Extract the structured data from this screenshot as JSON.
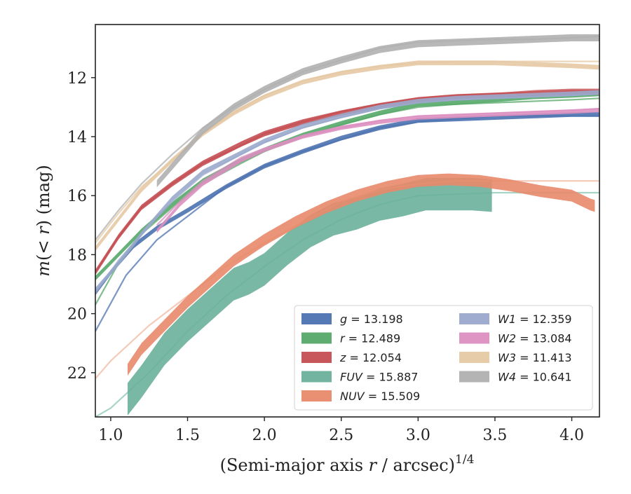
{
  "chart_data": {
    "type": "line",
    "xlabel": "(Semi-major axis r / arcsec)",
    "xlabel_italic": "r",
    "xlabel_power": "1/4",
    "ylabel": "m(< r) (mag)",
    "xlim": [
      0.9,
      4.18
    ],
    "ylim": [
      23.5,
      10.2
    ],
    "y_inverted": true,
    "grid": false,
    "legend_position": "lower-right",
    "xticks": [
      1.0,
      1.5,
      2.0,
      2.5,
      3.0,
      3.5,
      4.0
    ],
    "xtick_labels": [
      "1.0",
      "1.5",
      "2.0",
      "2.5",
      "3.0",
      "3.5",
      "4.0"
    ],
    "yticks": [
      12,
      14,
      16,
      18,
      20,
      22
    ],
    "ytick_labels": [
      "12",
      "14",
      "16",
      "18",
      "20",
      "22"
    ],
    "series": [
      {
        "name": "g",
        "label": "g = 13.198",
        "color": "#4c72b0",
        "model": [
          [
            0.9,
            20.6
          ],
          [
            1.1,
            18.7
          ],
          [
            1.3,
            17.5
          ],
          [
            1.5,
            16.7
          ],
          [
            1.75,
            15.7
          ],
          [
            2.0,
            15.0
          ],
          [
            2.25,
            14.5
          ],
          [
            2.5,
            14.1
          ],
          [
            2.75,
            13.7
          ],
          [
            3.0,
            13.5
          ],
          [
            3.25,
            13.4
          ],
          [
            3.5,
            13.3
          ],
          [
            3.75,
            13.3
          ],
          [
            4.0,
            13.3
          ],
          [
            4.18,
            13.3
          ]
        ],
        "observed": [
          [
            0.9,
            19.3
          ],
          [
            1.0,
            18.6
          ],
          [
            1.15,
            17.7
          ],
          [
            1.3,
            17.1
          ],
          [
            1.5,
            16.5
          ],
          [
            1.75,
            15.7
          ],
          [
            2.0,
            15.0
          ],
          [
            2.25,
            14.5
          ],
          [
            2.5,
            14.05
          ],
          [
            2.75,
            13.7
          ],
          [
            3.0,
            13.45
          ],
          [
            3.25,
            13.4
          ],
          [
            3.5,
            13.35
          ],
          [
            3.75,
            13.3
          ],
          [
            4.0,
            13.25
          ],
          [
            4.18,
            13.25
          ]
        ],
        "band": 0.08
      },
      {
        "name": "r",
        "label": "r = 12.489",
        "color": "#55a868",
        "model": [
          [
            0.9,
            19.7
          ],
          [
            1.05,
            18.3
          ],
          [
            1.2,
            17.3
          ],
          [
            1.4,
            16.4
          ],
          [
            1.6,
            15.6
          ],
          [
            1.85,
            14.9
          ],
          [
            2.0,
            14.5
          ],
          [
            2.25,
            14.0
          ],
          [
            2.5,
            13.6
          ],
          [
            2.75,
            13.25
          ],
          [
            3.0,
            13.0
          ],
          [
            3.25,
            12.9
          ],
          [
            3.5,
            12.85
          ],
          [
            3.75,
            12.8
          ],
          [
            4.0,
            12.75
          ],
          [
            4.18,
            12.7
          ]
        ],
        "observed": [
          [
            0.9,
            18.8
          ],
          [
            1.05,
            18.0
          ],
          [
            1.2,
            17.2
          ],
          [
            1.4,
            16.3
          ],
          [
            1.6,
            15.5
          ],
          [
            1.85,
            14.8
          ],
          [
            2.0,
            14.45
          ],
          [
            2.25,
            13.95
          ],
          [
            2.5,
            13.55
          ],
          [
            2.75,
            13.2
          ],
          [
            3.0,
            12.9
          ],
          [
            3.25,
            12.85
          ],
          [
            3.5,
            12.75
          ],
          [
            3.75,
            12.65
          ],
          [
            4.0,
            12.6
          ],
          [
            4.18,
            12.55
          ]
        ],
        "band": 0.08
      },
      {
        "name": "z",
        "label": "z = 12.054",
        "color": "#c44e52",
        "model": [
          [
            0.9,
            18.6
          ],
          [
            1.05,
            17.4
          ],
          [
            1.2,
            16.4
          ],
          [
            1.4,
            15.6
          ],
          [
            1.6,
            14.9
          ],
          [
            1.85,
            14.3
          ],
          [
            2.0,
            13.9
          ],
          [
            2.25,
            13.5
          ],
          [
            2.5,
            13.15
          ],
          [
            2.75,
            12.9
          ],
          [
            3.0,
            12.7
          ],
          [
            3.25,
            12.6
          ],
          [
            3.5,
            12.55
          ],
          [
            3.75,
            12.45
          ],
          [
            4.0,
            12.4
          ],
          [
            4.18,
            12.4
          ]
        ],
        "observed": [
          [
            0.9,
            18.6
          ],
          [
            1.05,
            17.4
          ],
          [
            1.2,
            16.4
          ],
          [
            1.4,
            15.6
          ],
          [
            1.6,
            14.9
          ],
          [
            1.85,
            14.25
          ],
          [
            2.0,
            13.9
          ],
          [
            2.25,
            13.5
          ],
          [
            2.5,
            13.2
          ],
          [
            2.75,
            12.95
          ],
          [
            3.0,
            12.75
          ],
          [
            3.25,
            12.65
          ],
          [
            3.5,
            12.6
          ],
          [
            3.75,
            12.55
          ],
          [
            4.0,
            12.5
          ],
          [
            4.18,
            12.5
          ]
        ],
        "band": 0.09
      },
      {
        "name": "FUV",
        "label": "FUV = 15.887",
        "color": "#8ac5b2",
        "observed_color": "#6ab09a",
        "model": [
          [
            0.9,
            23.5
          ],
          [
            1.0,
            23.2
          ],
          [
            1.25,
            22.0
          ],
          [
            1.5,
            20.6
          ],
          [
            1.75,
            19.4
          ],
          [
            2.0,
            18.4
          ],
          [
            2.25,
            17.5
          ],
          [
            2.5,
            16.8
          ],
          [
            2.75,
            16.3
          ],
          [
            3.0,
            16.0
          ],
          [
            3.25,
            15.95
          ],
          [
            3.5,
            15.9
          ],
          [
            3.75,
            15.9
          ],
          [
            4.0,
            15.9
          ],
          [
            4.18,
            15.9
          ]
        ],
        "observed": [
          [
            1.11,
            22.9
          ],
          [
            1.2,
            22.3
          ],
          [
            1.35,
            21.2
          ],
          [
            1.5,
            20.4
          ],
          [
            1.65,
            19.7
          ],
          [
            1.8,
            19.0
          ],
          [
            1.9,
            18.8
          ],
          [
            2.0,
            18.5
          ],
          [
            2.15,
            17.8
          ],
          [
            2.3,
            17.2
          ],
          [
            2.45,
            16.8
          ],
          [
            2.6,
            16.6
          ],
          [
            2.75,
            16.3
          ],
          [
            2.9,
            16.15
          ],
          [
            3.05,
            15.95
          ],
          [
            3.2,
            15.95
          ],
          [
            3.35,
            15.95
          ],
          [
            3.48,
            16.0
          ]
        ],
        "band": 0.55
      },
      {
        "name": "NUV",
        "label": "NUV = 15.509",
        "color": "#f0b8a0",
        "observed_color": "#e8896a",
        "model": [
          [
            0.9,
            22.2
          ],
          [
            1.0,
            21.6
          ],
          [
            1.25,
            20.4
          ],
          [
            1.5,
            19.4
          ],
          [
            1.75,
            18.4
          ],
          [
            2.0,
            17.6
          ],
          [
            2.25,
            16.9
          ],
          [
            2.5,
            16.2
          ],
          [
            2.75,
            15.8
          ],
          [
            3.0,
            15.6
          ],
          [
            3.25,
            15.5
          ],
          [
            3.5,
            15.5
          ],
          [
            3.75,
            15.5
          ],
          [
            4.0,
            15.5
          ],
          [
            4.18,
            15.5
          ]
        ],
        "observed": [
          [
            1.11,
            21.9
          ],
          [
            1.2,
            21.2
          ],
          [
            1.35,
            20.4
          ],
          [
            1.5,
            19.6
          ],
          [
            1.65,
            18.9
          ],
          [
            1.8,
            18.2
          ],
          [
            2.0,
            17.5
          ],
          [
            2.2,
            16.9
          ],
          [
            2.4,
            16.4
          ],
          [
            2.6,
            16.0
          ],
          [
            2.8,
            15.7
          ],
          [
            3.0,
            15.5
          ],
          [
            3.2,
            15.45
          ],
          [
            3.4,
            15.5
          ],
          [
            3.6,
            15.65
          ],
          [
            3.8,
            15.85
          ],
          [
            4.0,
            16.0
          ],
          [
            4.12,
            16.3
          ],
          [
            4.15,
            16.35
          ]
        ],
        "band": 0.2
      },
      {
        "name": "W1",
        "label": "W1 = 12.359",
        "color": "#9aa8cc",
        "model": [
          [
            0.9,
            19.3
          ],
          [
            1.05,
            18.2
          ],
          [
            1.2,
            17.3
          ],
          [
            1.4,
            16.2
          ],
          [
            1.6,
            15.3
          ],
          [
            1.85,
            14.6
          ],
          [
            2.0,
            14.2
          ],
          [
            2.25,
            13.7
          ],
          [
            2.5,
            13.35
          ],
          [
            2.75,
            13.05
          ],
          [
            3.0,
            12.85
          ],
          [
            3.25,
            12.75
          ],
          [
            3.5,
            12.7
          ],
          [
            3.75,
            12.65
          ],
          [
            4.0,
            12.6
          ],
          [
            4.18,
            12.55
          ]
        ],
        "observed": [
          [
            0.9,
            19.2
          ],
          [
            1.05,
            18.3
          ],
          [
            1.2,
            17.3
          ],
          [
            1.4,
            16.1
          ],
          [
            1.6,
            15.2
          ],
          [
            1.85,
            14.55
          ],
          [
            2.0,
            14.15
          ],
          [
            2.25,
            13.65
          ],
          [
            2.5,
            13.3
          ],
          [
            2.75,
            13.0
          ],
          [
            3.0,
            12.8
          ],
          [
            3.25,
            12.7
          ],
          [
            3.5,
            12.65
          ],
          [
            3.75,
            12.6
          ],
          [
            4.0,
            12.55
          ],
          [
            4.18,
            12.5
          ]
        ],
        "band": 0.08
      },
      {
        "name": "W2",
        "label": "W2 = 13.084",
        "color": "#dd8fc0",
        "model": [
          [
            1.3,
            17.0
          ],
          [
            1.45,
            16.2
          ],
          [
            1.6,
            15.5
          ],
          [
            1.85,
            14.7
          ],
          [
            2.0,
            14.4
          ],
          [
            2.25,
            14.0
          ],
          [
            2.5,
            13.7
          ],
          [
            2.75,
            13.45
          ],
          [
            3.0,
            13.3
          ],
          [
            3.25,
            13.25
          ],
          [
            3.5,
            13.2
          ],
          [
            3.75,
            13.15
          ],
          [
            4.0,
            13.1
          ],
          [
            4.18,
            13.05
          ]
        ],
        "observed": [
          [
            1.3,
            17.2
          ],
          [
            1.45,
            16.3
          ],
          [
            1.6,
            15.6
          ],
          [
            1.85,
            14.8
          ],
          [
            2.0,
            14.45
          ],
          [
            2.25,
            14.0
          ],
          [
            2.5,
            13.7
          ],
          [
            2.75,
            13.5
          ],
          [
            3.0,
            13.35
          ],
          [
            3.25,
            13.3
          ],
          [
            3.5,
            13.25
          ],
          [
            3.75,
            13.2
          ],
          [
            4.0,
            13.15
          ],
          [
            4.18,
            13.1
          ]
        ],
        "band": 0.07
      },
      {
        "name": "W3",
        "label": "W3 = 11.413",
        "color": "#e5c9a4",
        "model": [
          [
            0.9,
            17.6
          ],
          [
            1.05,
            16.6
          ],
          [
            1.2,
            15.7
          ],
          [
            1.4,
            14.8
          ],
          [
            1.6,
            13.9
          ],
          [
            1.8,
            13.2
          ],
          [
            2.0,
            12.6
          ],
          [
            2.25,
            12.1
          ],
          [
            2.5,
            11.8
          ],
          [
            2.75,
            11.6
          ],
          [
            3.0,
            11.5
          ],
          [
            3.25,
            11.45
          ],
          [
            3.5,
            11.45
          ],
          [
            3.75,
            11.45
          ],
          [
            4.0,
            11.45
          ],
          [
            4.18,
            11.45
          ]
        ],
        "observed": [
          [
            0.9,
            17.8
          ],
          [
            1.05,
            16.8
          ],
          [
            1.2,
            15.8
          ],
          [
            1.4,
            14.8
          ],
          [
            1.6,
            13.9
          ],
          [
            1.8,
            13.2
          ],
          [
            2.0,
            12.65
          ],
          [
            2.25,
            12.15
          ],
          [
            2.5,
            11.85
          ],
          [
            2.75,
            11.65
          ],
          [
            3.0,
            11.5
          ],
          [
            3.25,
            11.5
          ],
          [
            3.5,
            11.5
          ],
          [
            3.75,
            11.55
          ],
          [
            4.0,
            11.6
          ],
          [
            4.18,
            11.65
          ]
        ],
        "band": 0.08
      },
      {
        "name": "W4",
        "label": "W4 = 10.641",
        "color": "#b0b0b0",
        "model": [
          [
            0.9,
            17.5
          ],
          [
            1.05,
            16.5
          ],
          [
            1.2,
            15.6
          ],
          [
            1.4,
            14.6
          ],
          [
            1.6,
            13.7
          ],
          [
            1.8,
            13.0
          ],
          [
            2.0,
            12.4
          ],
          [
            2.25,
            11.8
          ],
          [
            2.5,
            11.4
          ],
          [
            2.75,
            11.0
          ],
          [
            3.0,
            10.8
          ],
          [
            3.25,
            10.75
          ],
          [
            3.5,
            10.7
          ],
          [
            3.75,
            10.7
          ],
          [
            4.0,
            10.65
          ],
          [
            4.18,
            10.6
          ]
        ],
        "observed": [
          [
            1.3,
            15.6
          ],
          [
            1.4,
            15.0
          ],
          [
            1.5,
            14.4
          ],
          [
            1.6,
            13.8
          ],
          [
            1.8,
            13.0
          ],
          [
            2.0,
            12.4
          ],
          [
            2.25,
            11.8
          ],
          [
            2.5,
            11.4
          ],
          [
            2.75,
            11.05
          ],
          [
            3.0,
            10.85
          ],
          [
            3.25,
            10.8
          ],
          [
            3.5,
            10.75
          ],
          [
            3.75,
            10.7
          ],
          [
            4.0,
            10.65
          ],
          [
            4.18,
            10.65
          ]
        ],
        "band": 0.12
      }
    ]
  }
}
